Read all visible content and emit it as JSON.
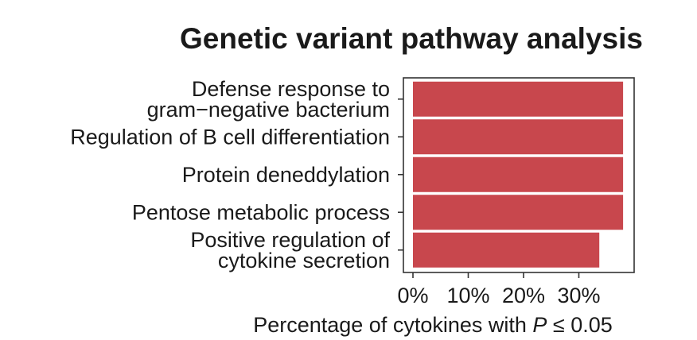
{
  "chart_data": {
    "type": "bar",
    "orientation": "horizontal",
    "title": "Genetic variant pathway analysis",
    "categories": [
      "Defense response to gram−negative bacterium",
      "Regulation of B cell differentiation",
      "Protein deneddylation",
      "Pentose metabolic process",
      "Positive regulation of cytokine secretion"
    ],
    "category_lines": [
      [
        "Defense response to",
        "gram−negative bacterium"
      ],
      [
        "Regulation of B cell differentiation"
      ],
      [
        "Protein deneddylation"
      ],
      [
        "Pentose metabolic process"
      ],
      [
        "Positive regulation of",
        "cytokine secretion"
      ]
    ],
    "values": [
      38.0,
      38.0,
      38.0,
      38.0,
      33.7
    ],
    "value_unit": "%",
    "xlim": [
      0,
      40
    ],
    "xticks": [
      0,
      10,
      20,
      30
    ],
    "xtick_labels": [
      "0%",
      "10%",
      "20%",
      "30%"
    ],
    "xlabel_prefix": "Percentage of cytokines with ",
    "xlabel_var": "P",
    "xlabel_suffix": " ≤ 0.05",
    "ylabel": "",
    "grid": false,
    "bar_color": "#c8474d"
  }
}
